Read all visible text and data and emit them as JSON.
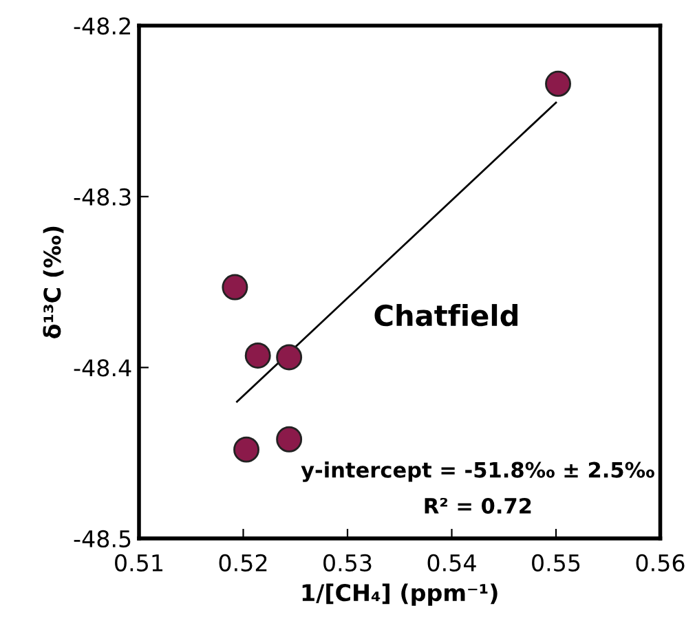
{
  "chart_data": {
    "type": "scatter",
    "xlabel": "1/[CH₄] (ppm⁻¹)",
    "ylabel": "δ¹³C (‰)",
    "series": [
      {
        "color": "#8b1a4a",
        "marker": "circle",
        "x": [
          0.5192,
          0.5214,
          0.5244,
          0.5203,
          0.5244,
          0.5502
        ],
        "values": [
          -48.353,
          -48.393,
          -48.394,
          -48.448,
          -48.442,
          -48.234
        ]
      },
      {
        "type": "line",
        "color": "#000000",
        "marker": "none",
        "x": [
          0.5194,
          0.55
        ],
        "values": [
          -48.42,
          -48.245
        ]
      }
    ],
    "xlim": [
      0.51,
      0.56
    ],
    "xticks": [
      0.51,
      0.52,
      0.53,
      0.54,
      0.55,
      0.56
    ],
    "ylim": [
      -48.5,
      -48.2
    ],
    "yticks": [
      -48.5,
      -48.4,
      -48.3,
      -48.2
    ],
    "grid": false,
    "annotations": [
      "Chatfield",
      "y-intercept = -51.8‰ ± 2.5‰",
      "R² = 0.72"
    ]
  }
}
